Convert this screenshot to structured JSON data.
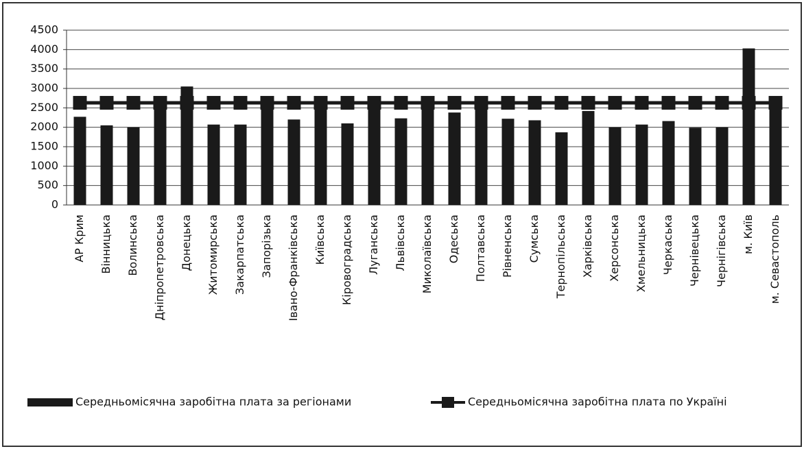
{
  "chart_data": {
    "type": "bar",
    "categories": [
      "АР Крим",
      "Вінницька",
      "Волинська",
      "Дніпропетровська",
      "Донецька",
      "Житомирська",
      "Закарпатська",
      "Запорізька",
      "Івано-Франківська",
      "Київська",
      "Кіровоградська",
      "Луганська",
      "Львівська",
      "Миколаївська",
      "Одеська",
      "Полтавська",
      "Рівненська",
      "Сумська",
      "Тернопільська",
      "Харківська",
      "Херсонська",
      "Хмельницька",
      "Черкаська",
      "Чернівецька",
      "Чернігівська",
      "м. Київ",
      "м. Севастополь"
    ],
    "series": [
      {
        "name": "Середньомісячна заробітна плата за регіонами",
        "type": "bar",
        "color": "#1a1a1a",
        "values": [
          2270,
          2050,
          2000,
          2800,
          3050,
          2070,
          2070,
          2750,
          2200,
          2800,
          2100,
          2800,
          2230,
          2800,
          2380,
          2800,
          2220,
          2180,
          1870,
          2420,
          2000,
          2070,
          2160,
          1990,
          2000,
          4030,
          2800
        ]
      },
      {
        "name": "Середньомісячна заробітна плата по Україні",
        "type": "line",
        "color": "#1a1a1a",
        "values": [
          2630,
          2630,
          2630,
          2630,
          2630,
          2630,
          2630,
          2630,
          2630,
          2630,
          2630,
          2630,
          2630,
          2630,
          2630,
          2630,
          2630,
          2630,
          2630,
          2630,
          2630,
          2630,
          2630,
          2630,
          2630,
          2630,
          2630
        ]
      }
    ],
    "ylim": [
      0,
      4500
    ],
    "yticks": [
      0,
      500,
      1000,
      1500,
      2000,
      2500,
      3000,
      3500,
      4000,
      4500
    ],
    "grid": true,
    "legend": "bottom"
  }
}
